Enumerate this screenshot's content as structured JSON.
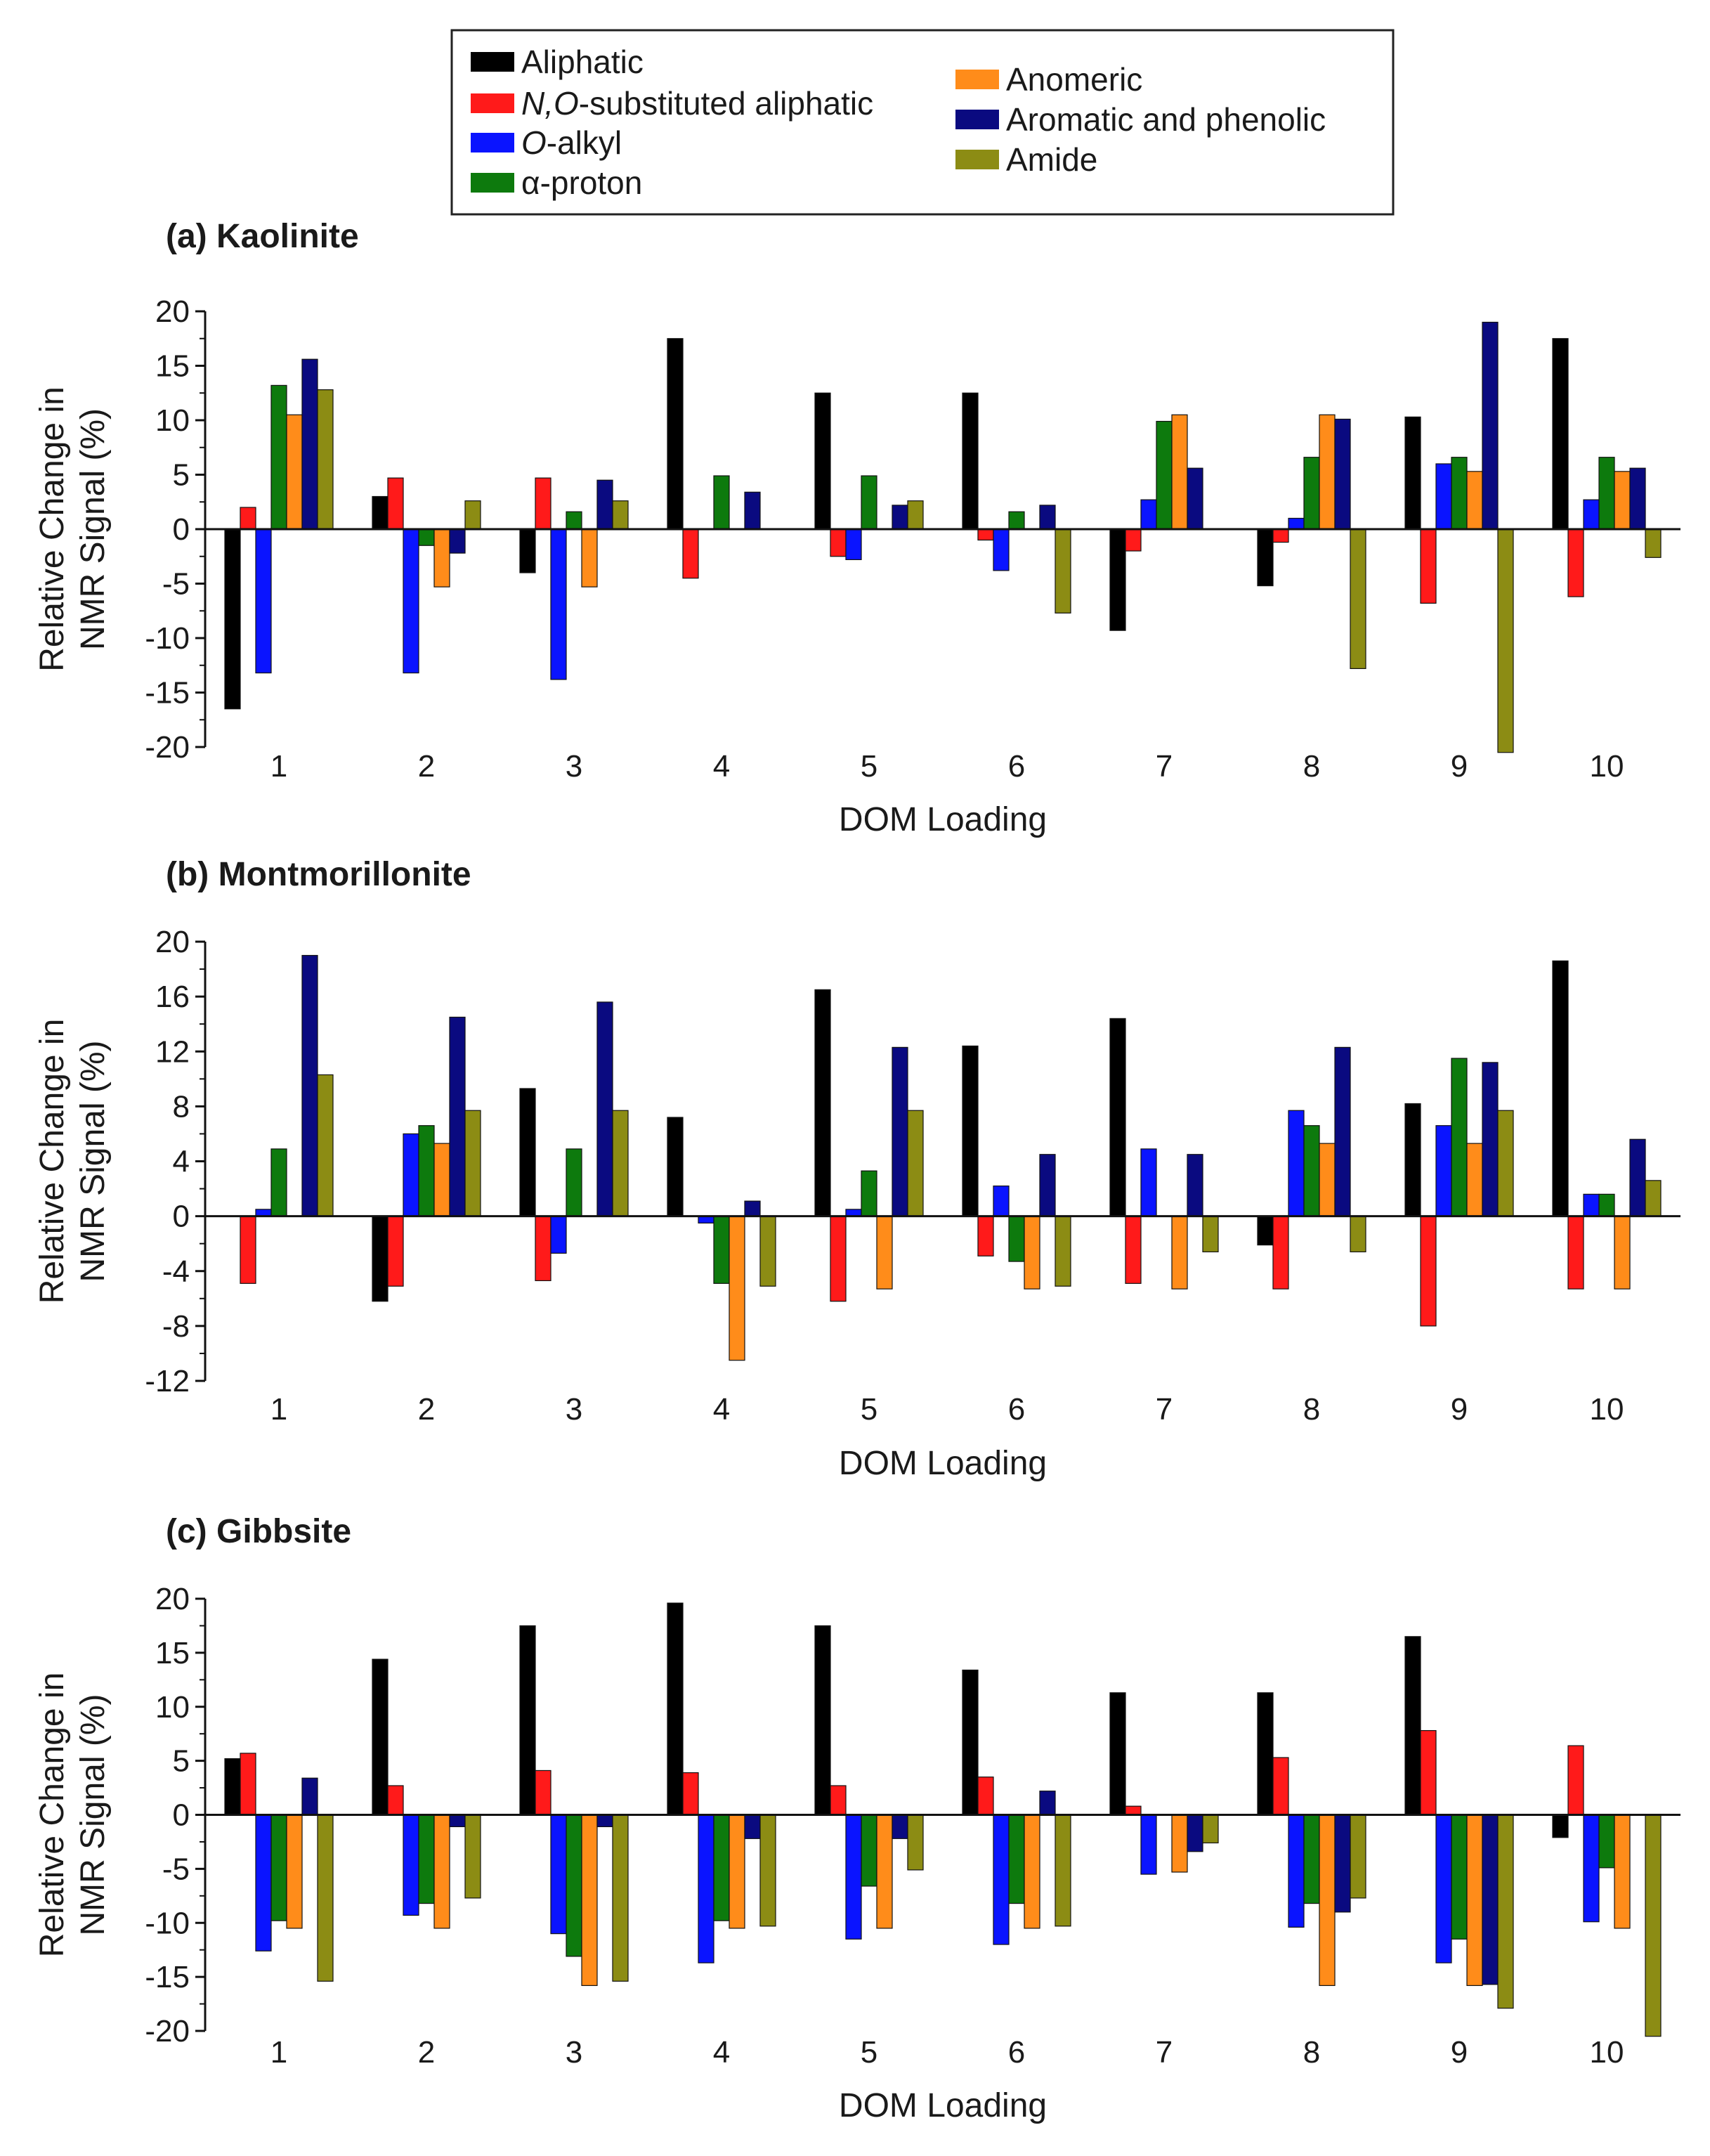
{
  "legend": [
    {
      "label_parts": [
        {
          "t": "Aliphatic",
          "i": false
        }
      ]
    },
    {
      "label_parts": [
        {
          "t": "N,O",
          "i": true
        },
        {
          "t": "-substituted aliphatic",
          "i": false
        }
      ]
    },
    {
      "label_parts": [
        {
          "t": "O",
          "i": true
        },
        {
          "t": "-alkyl",
          "i": false
        }
      ]
    },
    {
      "label_parts": [
        {
          "t": "α-proton",
          "i": false
        }
      ]
    },
    {
      "label_parts": [
        {
          "t": "Anomeric",
          "i": false
        }
      ]
    },
    {
      "label_parts": [
        {
          "t": "Aromatic and phenolic",
          "i": false
        }
      ]
    },
    {
      "label_parts": [
        {
          "t": "Amide",
          "i": false
        }
      ]
    }
  ],
  "colors": {
    "Aliphatic": "#000000",
    "N,O-substituted aliphatic": "#ff1a1a",
    "O-alkyl": "#0a14ff",
    "α-proton": "#0d7a0d",
    "Anomeric": "#ff8c1a",
    "Aromatic and phenolic": "#0a0a80",
    "Amide": "#8c8c14"
  },
  "chart_data": [
    {
      "type": "bar",
      "title": "(a) Kaolinite",
      "xlabel": "DOM Loading",
      "ylabel": [
        "Relative Change in",
        "NMR Signal (%)"
      ],
      "ylim": [
        -20,
        20
      ],
      "yticks": [
        20,
        15,
        10,
        5,
        0,
        -5,
        -10,
        -15,
        -20
      ],
      "yticklabels": [
        "20",
        "15",
        "10",
        "5",
        "0",
        "-5",
        "-10",
        "-15",
        "-20"
      ],
      "categories": [
        "1",
        "2",
        "3",
        "4",
        "5",
        "6",
        "7",
        "8",
        "9",
        "10"
      ],
      "series": [
        {
          "name": "Aliphatic",
          "values": [
            -16.5,
            3,
            -4,
            17.5,
            12.5,
            12.5,
            -9.3,
            -5.2,
            10.3,
            17.5
          ]
        },
        {
          "name": "N,O-substituted aliphatic",
          "values": [
            2,
            4.7,
            4.7,
            -4.5,
            -2.5,
            -1,
            -2,
            -1.2,
            -6.8,
            -6.2
          ]
        },
        {
          "name": "O-alkyl",
          "values": [
            -13.2,
            -13.2,
            -13.8,
            0,
            -2.8,
            -3.8,
            2.7,
            1,
            6,
            2.7
          ]
        },
        {
          "name": "α-proton",
          "values": [
            13.2,
            -1.5,
            1.6,
            4.9,
            4.9,
            1.6,
            9.9,
            6.6,
            6.6,
            6.6
          ]
        },
        {
          "name": "Anomeric",
          "values": [
            10.5,
            -5.3,
            -5.3,
            0,
            0,
            0,
            10.5,
            10.5,
            5.3,
            5.3
          ]
        },
        {
          "name": "Aromatic and phenolic",
          "values": [
            15.6,
            -2.2,
            4.5,
            3.4,
            2.2,
            2.2,
            5.6,
            10.1,
            19,
            5.6
          ]
        },
        {
          "name": "Amide",
          "values": [
            12.8,
            2.6,
            2.6,
            0,
            2.6,
            -7.7,
            0,
            -12.8,
            -20.5,
            -2.6
          ]
        }
      ]
    },
    {
      "type": "bar",
      "title": "(b) Montmorillonite",
      "xlabel": "DOM Loading",
      "ylabel": [
        "Relative Change in",
        "NMR Signal (%)"
      ],
      "ylim": [
        -12,
        20
      ],
      "yticks": [
        20,
        16,
        12,
        8,
        4,
        0,
        -4,
        -8,
        -12
      ],
      "yticklabels": [
        "20",
        "16",
        "12",
        "8",
        "4",
        "0",
        "-4",
        "-8",
        "-12"
      ],
      "categories": [
        "1",
        "2",
        "3",
        "4",
        "5",
        "6",
        "7",
        "8",
        "9",
        "10"
      ],
      "series": [
        {
          "name": "Aliphatic",
          "values": [
            0,
            -6.2,
            9.3,
            7.2,
            16.5,
            12.4,
            14.4,
            -2.1,
            8.2,
            18.6
          ]
        },
        {
          "name": "N,O-substituted aliphatic",
          "values": [
            -4.9,
            -5.1,
            -4.7,
            0,
            -6.2,
            -2.9,
            -4.9,
            -5.3,
            -8,
            -5.3
          ]
        },
        {
          "name": "O-alkyl",
          "values": [
            0.5,
            6,
            -2.7,
            -0.5,
            0.5,
            2.2,
            4.9,
            7.7,
            6.6,
            1.6
          ]
        },
        {
          "name": "α-proton",
          "values": [
            4.9,
            6.6,
            4.9,
            -4.9,
            3.3,
            -3.3,
            0,
            6.6,
            11.5,
            1.6
          ]
        },
        {
          "name": "Anomeric",
          "values": [
            0,
            5.3,
            0,
            -10.5,
            -5.3,
            -5.3,
            -5.3,
            5.3,
            5.3,
            -5.3
          ]
        },
        {
          "name": "Aromatic and phenolic",
          "values": [
            19,
            14.5,
            15.6,
            1.1,
            12.3,
            4.5,
            4.5,
            12.3,
            11.2,
            5.6
          ]
        },
        {
          "name": "Amide",
          "values": [
            10.3,
            7.7,
            7.7,
            -5.1,
            7.7,
            -5.1,
            -2.6,
            -2.6,
            7.7,
            2.6
          ]
        }
      ]
    },
    {
      "type": "bar",
      "title": "(c) Gibbsite",
      "xlabel": "DOM Loading",
      "ylabel": [
        "Relative Change in",
        "NMR Signal (%)"
      ],
      "ylim": [
        -20,
        20
      ],
      "yticks": [
        20,
        15,
        10,
        5,
        0,
        -5,
        -10,
        -15,
        -20
      ],
      "yticklabels": [
        "20",
        "15",
        "10",
        "5",
        "0",
        "-5",
        "-10",
        "-15",
        "-20"
      ],
      "categories": [
        "1",
        "2",
        "3",
        "4",
        "5",
        "6",
        "7",
        "8",
        "9",
        "10"
      ],
      "series": [
        {
          "name": "Aliphatic",
          "values": [
            5.2,
            14.4,
            17.5,
            19.6,
            17.5,
            13.4,
            11.3,
            11.3,
            16.5,
            -2.1
          ]
        },
        {
          "name": "N,O-substituted aliphatic",
          "values": [
            5.7,
            2.7,
            4.1,
            3.9,
            2.7,
            3.5,
            0.8,
            5.3,
            7.8,
            6.4
          ]
        },
        {
          "name": "O-alkyl",
          "values": [
            -12.6,
            -9.3,
            -11,
            -13.7,
            -11.5,
            -12,
            -5.5,
            -10.4,
            -13.7,
            -9.9
          ]
        },
        {
          "name": "α-proton",
          "values": [
            -9.8,
            -8.2,
            -13.1,
            -9.8,
            -6.6,
            -8.2,
            0,
            -8.2,
            -11.5,
            -4.9
          ]
        },
        {
          "name": "Anomeric",
          "values": [
            -10.5,
            -10.5,
            -15.8,
            -10.5,
            -10.5,
            -10.5,
            -5.3,
            -15.8,
            -15.8,
            -10.5
          ]
        },
        {
          "name": "Aromatic and phenolic",
          "values": [
            3.4,
            -1.1,
            -1.1,
            -2.2,
            -2.2,
            2.2,
            -3.4,
            -9,
            -15.7,
            0
          ]
        },
        {
          "name": "Amide",
          "values": [
            -15.4,
            -7.7,
            -15.4,
            -10.3,
            -5.1,
            -10.3,
            -2.6,
            -7.7,
            -17.9,
            -20.5
          ]
        }
      ]
    }
  ]
}
